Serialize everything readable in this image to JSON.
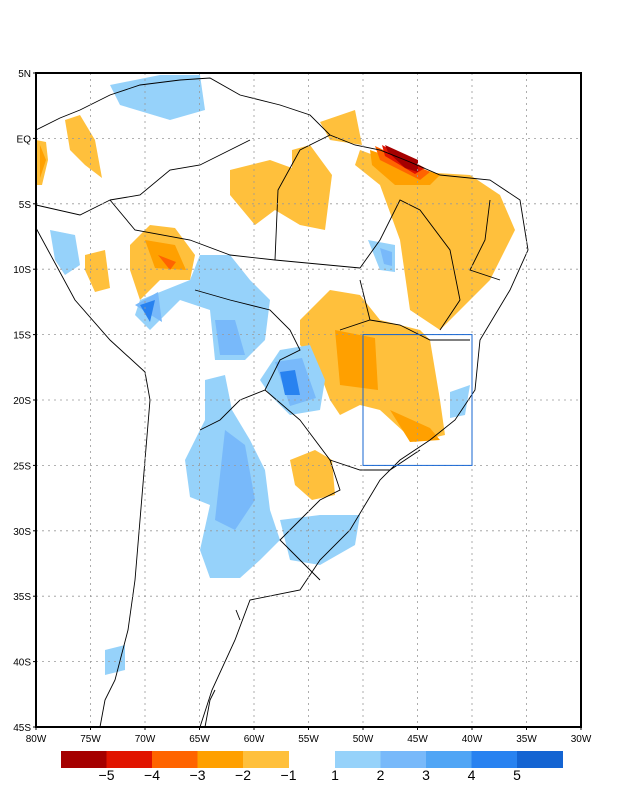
{
  "map": {
    "lat_labels": [
      "5N",
      "EQ",
      "5S",
      "10S",
      "15S",
      "20S",
      "25S",
      "30S",
      "35S",
      "40S",
      "45S"
    ],
    "lon_labels": [
      "80W",
      "75W",
      "70W",
      "65W",
      "60W",
      "55W",
      "50W",
      "45W",
      "40W",
      "35W",
      "30W"
    ],
    "extent": {
      "lon": [
        -80,
        -30
      ],
      "lat": [
        -45,
        5
      ]
    },
    "highlight_box": {
      "lon": [
        -50,
        -40
      ],
      "lat": [
        -25,
        -15
      ],
      "color": "#1464d2"
    }
  },
  "colorbar": {
    "negative_colors": [
      "#a50000",
      "#e11400",
      "#ff6400",
      "#ffa000",
      "#ffc03c"
    ],
    "positive_colors": [
      "#96d2fa",
      "#78b9fa",
      "#50a5f5",
      "#2882f0",
      "#1464d2"
    ],
    "negative_labels": [
      "−5",
      "−4",
      "−3",
      "−2",
      "−1"
    ],
    "positive_labels": [
      "1",
      "2",
      "3",
      "4",
      "5"
    ]
  }
}
